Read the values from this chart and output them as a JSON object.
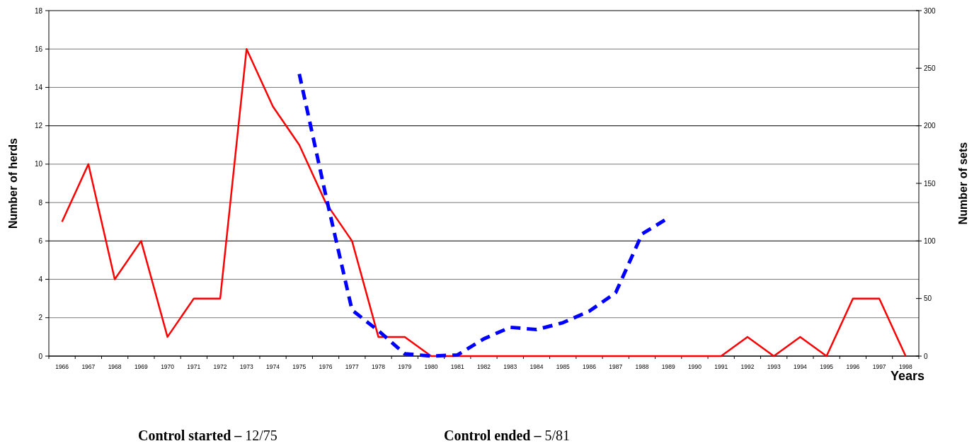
{
  "chart_data": {
    "type": "line",
    "xlabel": "Years",
    "ylabel": "Number of herds",
    "y2label": "Number of sets",
    "categories": [
      "1966",
      "1967",
      "1968",
      "1969",
      "1970",
      "1971",
      "1972",
      "1973",
      "1974",
      "1975",
      "1976",
      "1977",
      "1978",
      "1979",
      "1980",
      "1981",
      "1982",
      "1983",
      "1984",
      "1985",
      "1986",
      "1987",
      "1988",
      "1989",
      "1990",
      "1991",
      "1992",
      "1993",
      "1994",
      "1995",
      "1996",
      "1997",
      "1998"
    ],
    "series": [
      {
        "color": "#ff0000",
        "line_style": "solid",
        "values": [
          7,
          10,
          4,
          6,
          1,
          3,
          3,
          16,
          13,
          11,
          8,
          6,
          1,
          1,
          0,
          0,
          0,
          0,
          0,
          0,
          0,
          0,
          0,
          0,
          0,
          0,
          1,
          0,
          1,
          0,
          3,
          3,
          0
        ]
      },
      {
        "color": "#0000ff",
        "line_style": "dashed",
        "axis": "y2",
        "values": [
          null,
          null,
          null,
          null,
          null,
          null,
          null,
          null,
          null,
          245,
          140,
          40,
          22,
          2,
          0,
          1,
          15,
          25,
          23,
          29,
          39,
          55,
          106,
          120,
          null,
          null,
          null,
          null,
          null,
          null,
          null,
          null,
          null
        ]
      }
    ],
    "ylim": [
      0,
      18
    ],
    "yticks": [
      0,
      2,
      4,
      6,
      8,
      10,
      12,
      14,
      16,
      18
    ],
    "y2lim": [
      0,
      300
    ],
    "y2ticks": [
      0,
      50,
      100,
      150,
      200,
      250,
      300
    ],
    "grid": "y",
    "marker": "none",
    "annotations": [
      "Control started – 12/75",
      "Control ended – 5/81"
    ]
  }
}
